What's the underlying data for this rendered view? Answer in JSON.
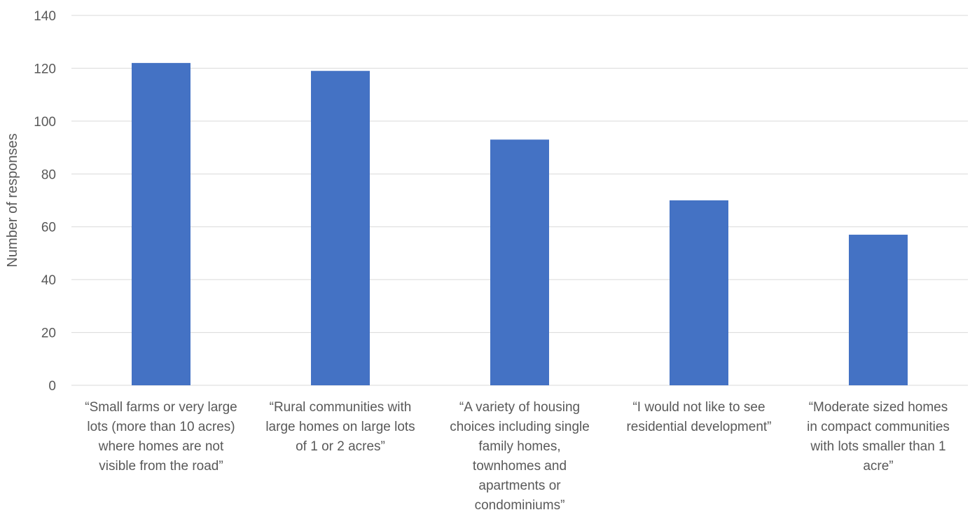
{
  "chart_data": {
    "type": "bar",
    "title": "",
    "xlabel": "",
    "ylabel": "Number of responses",
    "ylim": [
      0,
      140
    ],
    "yticks": [
      0,
      20,
      40,
      60,
      80,
      100,
      120,
      140
    ],
    "grid": true,
    "legend": "none",
    "bar_color": "#4472C4",
    "grid_color": "#D9D9D9",
    "text_color": "#595959",
    "categories": [
      [
        "“Small farms or very large",
        "lots (more than 10 acres)",
        "where homes are not",
        "visible from the road”"
      ],
      [
        "“Rural communities with",
        "large homes on large lots",
        "of 1 or 2 acres”"
      ],
      [
        "“A variety of housing",
        "choices including single",
        "family homes,",
        "townhomes and",
        "apartments or",
        "condominiums”"
      ],
      [
        "“I would not like to see",
        "residential development”"
      ],
      [
        "“Moderate sized homes",
        "in compact communities",
        "with lots smaller than 1",
        "acre”"
      ]
    ],
    "values": [
      122,
      119,
      93,
      70,
      57
    ]
  }
}
